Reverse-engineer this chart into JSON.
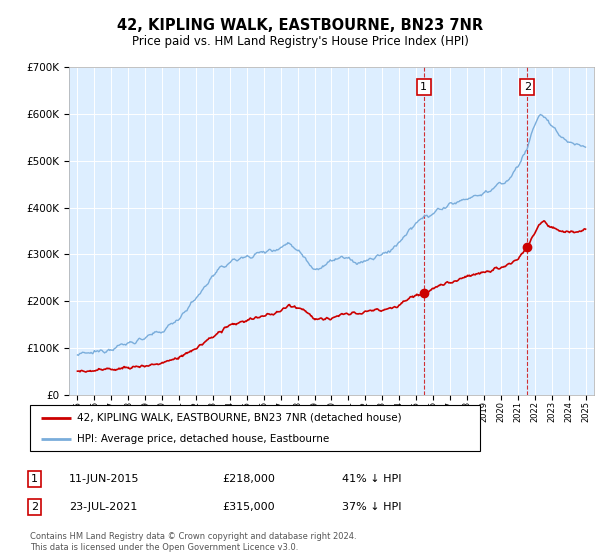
{
  "title": "42, KIPLING WALK, EASTBOURNE, BN23 7NR",
  "subtitle": "Price paid vs. HM Land Registry's House Price Index (HPI)",
  "legend_label_red": "42, KIPLING WALK, EASTBOURNE, BN23 7NR (detached house)",
  "legend_label_blue": "HPI: Average price, detached house, Eastbourne",
  "annotation1_label": "1",
  "annotation1_date": "11-JUN-2015",
  "annotation1_price": "£218,000",
  "annotation1_note": "41% ↓ HPI",
  "annotation1_year": 2015.45,
  "annotation1_value": 218000,
  "annotation2_label": "2",
  "annotation2_date": "23-JUL-2021",
  "annotation2_price": "£315,000",
  "annotation2_note": "37% ↓ HPI",
  "annotation2_year": 2021.56,
  "annotation2_value": 315000,
  "footer": "Contains HM Land Registry data © Crown copyright and database right 2024.\nThis data is licensed under the Open Government Licence v3.0.",
  "red_color": "#cc0000",
  "blue_color": "#7aaddb",
  "bg_color": "#ddeeff",
  "ylim_max": 700000,
  "ylim_min": 0,
  "xlim_min": 1994.5,
  "xlim_max": 2025.5
}
